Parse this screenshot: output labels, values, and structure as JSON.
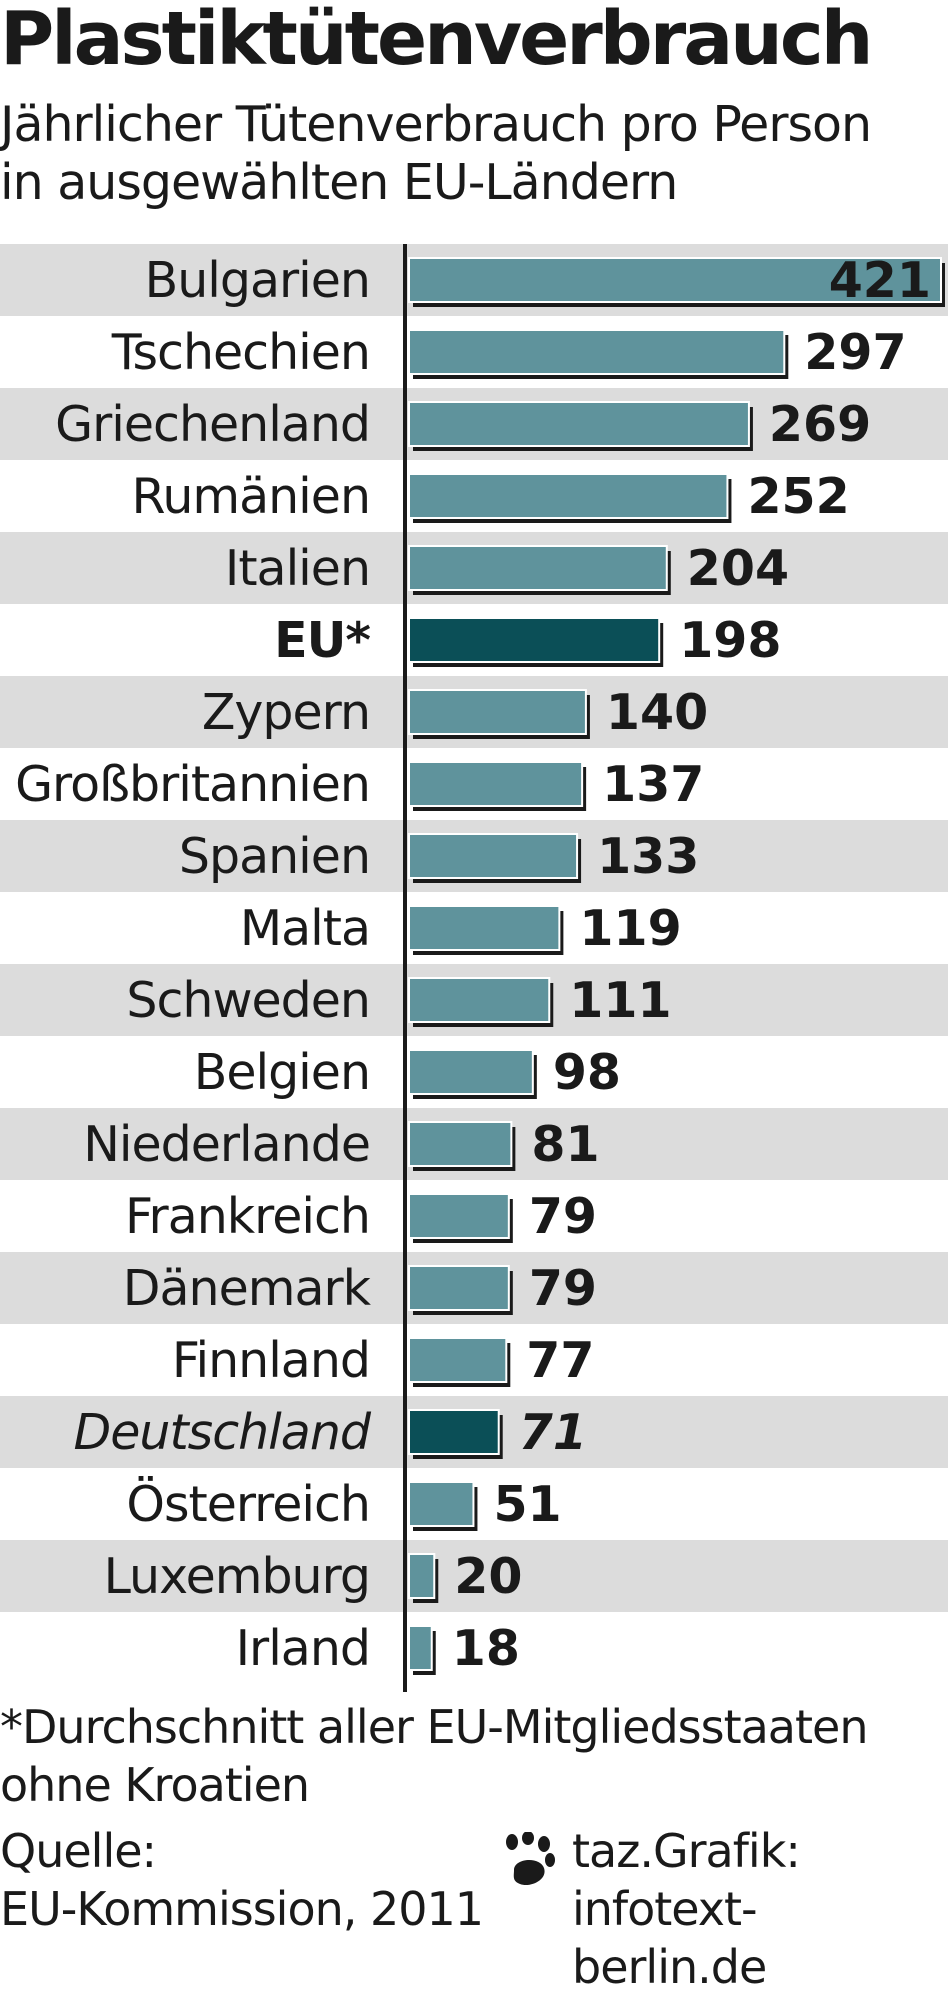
{
  "chart_data": {
    "type": "bar",
    "orientation": "horizontal",
    "title": "Plastiktütenverbrauch",
    "subtitle": [
      "Jährlicher Tütenverbrauch pro Person",
      "in ausgewählten EU-Ländern"
    ],
    "categories": [
      "Bulgarien",
      "Tschechien",
      "Griechenland",
      "Rumänien",
      "Italien",
      "EU*",
      "Zypern",
      "Großbritannien",
      "Spanien",
      "Malta",
      "Schweden",
      "Belgien",
      "Niederlande",
      "Frankreich",
      "Dänemark",
      "Finnland",
      "Deutschland",
      "Österreich",
      "Luxemburg",
      "Irland"
    ],
    "values": [
      421,
      297,
      269,
      252,
      204,
      198,
      140,
      137,
      133,
      119,
      111,
      98,
      81,
      79,
      79,
      77,
      71,
      51,
      20,
      18
    ],
    "highlight": {
      "EU*": "bold",
      "Deutschland": "italic"
    },
    "xlim": [
      0,
      421
    ],
    "grid": false,
    "colors": {
      "bar": "#5f939c",
      "bar_highlight": "#0b4f57",
      "stripe": "#dcdcdc",
      "shadow": "#1a1a1a"
    }
  },
  "footnote": [
    "*Durchschnitt aller EU-Mitgliedsstaaten",
    "ohne Kroatien"
  ],
  "source": {
    "label": "Quelle:",
    "text": "EU-Kommission, 2011"
  },
  "credit": {
    "line1": "taz.Grafik:",
    "line2": "infotext-berlin.de",
    "icon": "paw-icon"
  }
}
